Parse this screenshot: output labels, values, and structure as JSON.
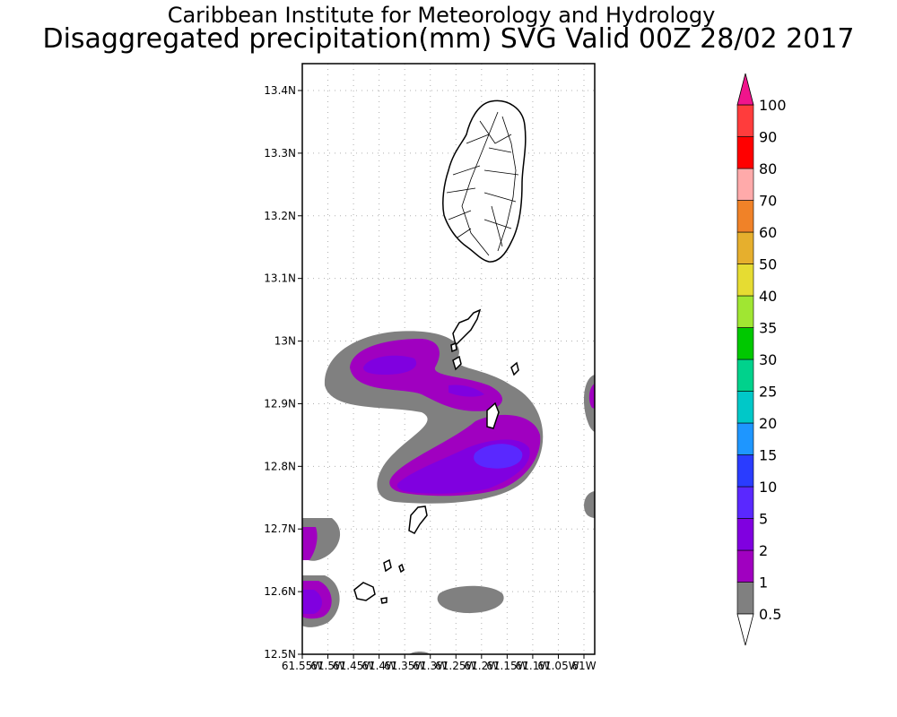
{
  "title_line1": "Caribbean Institute for Meteorology and Hydrology",
  "title_line2": "Disaggregated precipitation(mm) SVG Valid 00Z 28/02 2017",
  "lat_labels": [
    "13.4N",
    "13.3N",
    "13.2N",
    "13.1N",
    "13N",
    "12.9N",
    "12.8N",
    "12.7N",
    "12.6N",
    "12.5N"
  ],
  "lon_labels": [
    "61.55W",
    "61.5W",
    "61.45W",
    "61.4W",
    "61.35W",
    "61.3W",
    "61.25W",
    "61.2W",
    "61.15W",
    "61.1W",
    "61.05W",
    "61W"
  ],
  "colorbar": {
    "labels": [
      "0.5",
      "1",
      "2",
      "5",
      "10",
      "15",
      "20",
      "25",
      "30",
      "35",
      "40",
      "50",
      "60",
      "70",
      "80",
      "90",
      "100"
    ],
    "colors": [
      "#808080",
      "#a000c0",
      "#8000e0",
      "#5a28ff",
      "#2a3cff",
      "#1e96ff",
      "#00c8c8",
      "#00d28c",
      "#00c800",
      "#a0e632",
      "#e6dc32",
      "#e6af2d",
      "#f08228",
      "#ffaaaa",
      "#ff0000",
      "#ff3c3c",
      "#f0148c"
    ]
  }
}
